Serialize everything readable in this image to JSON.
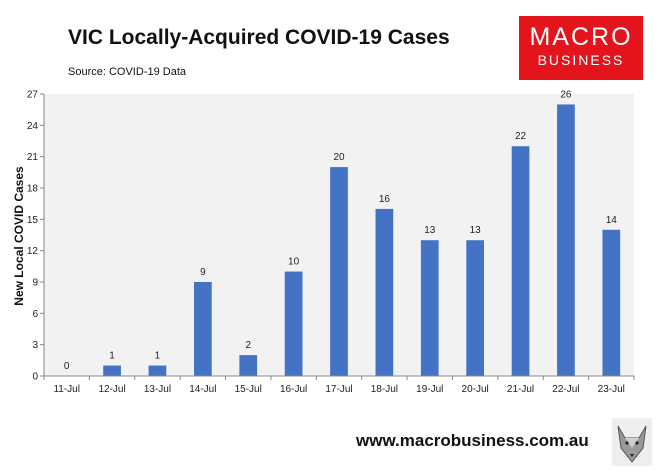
{
  "header": {
    "title": "VIC Locally-Acquired COVID-19 Cases",
    "subtitle": "Source: COVID-19 Data"
  },
  "logo": {
    "line1": "MACRO",
    "line2": "BUSINESS"
  },
  "footer": {
    "url": "www.macrobusiness.com.au"
  },
  "colors": {
    "bar": "#4472c4",
    "plot_bg": "#f2f2f2",
    "logo_bg": "#e3141b"
  },
  "chart_data": {
    "type": "bar",
    "title": "VIC Locally-Acquired COVID-19 Cases",
    "xlabel": "",
    "ylabel": "New Local COVID Cases",
    "categories": [
      "11-Jul",
      "12-Jul",
      "13-Jul",
      "14-Jul",
      "15-Jul",
      "16-Jul",
      "17-Jul",
      "18-Jul",
      "19-Jul",
      "20-Jul",
      "21-Jul",
      "22-Jul",
      "23-Jul"
    ],
    "values": [
      0,
      1,
      1,
      9,
      2,
      10,
      20,
      16,
      13,
      13,
      22,
      26,
      14
    ],
    "ylim": [
      0,
      27
    ],
    "yticks": [
      0,
      3,
      6,
      9,
      12,
      15,
      18,
      21,
      24,
      27
    ],
    "data_labels": true,
    "grid": false,
    "legend": "none"
  }
}
